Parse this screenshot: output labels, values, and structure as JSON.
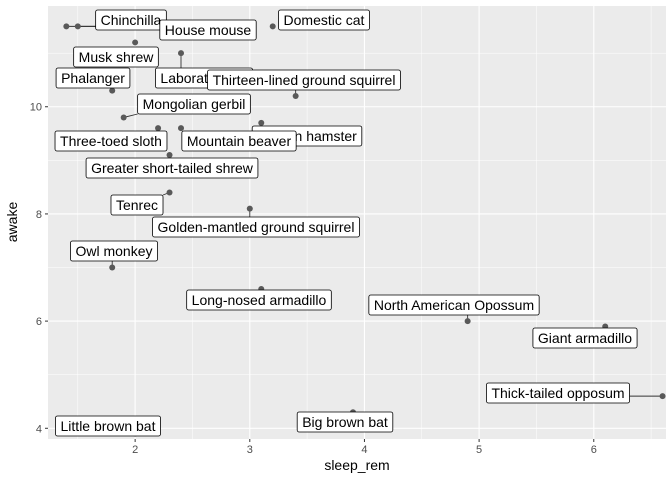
{
  "chart_data": {
    "type": "scatter",
    "title": "",
    "xlabel": "sleep_rem",
    "ylabel": "awake",
    "xlim": [
      1.24,
      6.63
    ],
    "ylim": [
      3.8,
      11.88
    ],
    "xticks": [
      2,
      3,
      4,
      5,
      6
    ],
    "yticks": [
      4,
      6,
      8,
      10
    ],
    "grid": true,
    "colors": {
      "panel": "#ebebeb",
      "grid_major": "#ffffff",
      "point": "#595959"
    },
    "points": [
      {
        "label": "Chinchilla",
        "x": 1.5,
        "y": 11.5
      },
      {
        "label": "House mouse",
        "x": 1.4,
        "y": 11.5
      },
      {
        "label": "Domestic cat",
        "x": 3.2,
        "y": 11.5
      },
      {
        "label": "Musk shrew",
        "x": 2.0,
        "y": 11.2
      },
      {
        "label": "Laboratory rat",
        "x": 2.4,
        "y": 11.0
      },
      {
        "label": "Phalanger",
        "x": 1.8,
        "y": 10.3
      },
      {
        "label": "Thirteen-lined ground squirrel",
        "x": 3.4,
        "y": 10.2
      },
      {
        "label": "Mongolian gerbil",
        "x": 1.9,
        "y": 9.8
      },
      {
        "label": "Golden hamster",
        "x": 3.1,
        "y": 9.7
      },
      {
        "label": "Three-toed sloth",
        "x": 2.2,
        "y": 9.6
      },
      {
        "label": "Mountain beaver",
        "x": 2.4,
        "y": 9.6
      },
      {
        "label": "Greater short-tailed shrew",
        "x": 2.3,
        "y": 9.1
      },
      {
        "label": "Tenrec",
        "x": 2.3,
        "y": 8.4
      },
      {
        "label": "Golden-mantled ground squirrel",
        "x": 3.0,
        "y": 8.1
      },
      {
        "label": "Owl monkey",
        "x": 1.8,
        "y": 7.0
      },
      {
        "label": "Long-nosed armadillo",
        "x": 3.1,
        "y": 6.6
      },
      {
        "label": "North American Opossum",
        "x": 4.9,
        "y": 6.0
      },
      {
        "label": "Giant armadillo",
        "x": 6.1,
        "y": 5.9
      },
      {
        "label": "Thick-tailed opposum",
        "x": 6.6,
        "y": 4.6
      },
      {
        "label": "Big brown bat",
        "x": 3.9,
        "y": 4.3
      },
      {
        "label": "Little brown bat",
        "x": 2.0,
        "y": 3.9
      }
    ]
  }
}
